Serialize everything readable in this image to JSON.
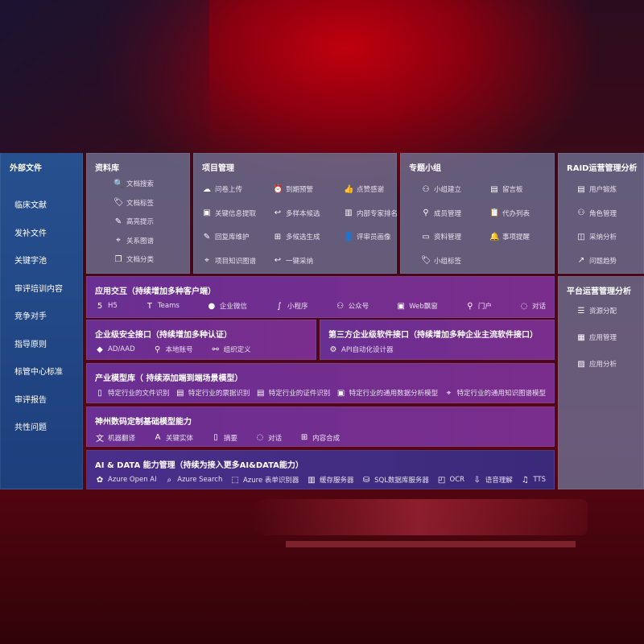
{
  "external": {
    "title": "外部文件",
    "items": [
      "临床文献",
      "发补文件",
      "关键字池",
      "审评培训内容",
      "竞争对手",
      "指导原则",
      "标管中心标准",
      "审评报告",
      "共性问题"
    ]
  },
  "library": {
    "title": "资料库",
    "items": [
      {
        "icon": "doc-search",
        "label": "文档搜索"
      },
      {
        "icon": "tag",
        "label": "文档标签"
      },
      {
        "icon": "pen",
        "label": "高亮提示"
      },
      {
        "icon": "graph",
        "label": "关系图谱"
      },
      {
        "icon": "doc-stack",
        "label": "文档分类"
      }
    ]
  },
  "project": {
    "title": "项目管理",
    "items": [
      {
        "icon": "cloud-upload",
        "label": "问卷上传"
      },
      {
        "icon": "alarm",
        "label": "到期预警"
      },
      {
        "icon": "thumbs-up",
        "label": "点赞感谢"
      },
      {
        "icon": "window",
        "label": "关键信息提取"
      },
      {
        "icon": "reply-all",
        "label": "多样本候选"
      },
      {
        "icon": "rank",
        "label": "内部专家排名"
      },
      {
        "icon": "edit",
        "label": "回复库维护"
      },
      {
        "icon": "puzzle",
        "label": "多候选生成"
      },
      {
        "icon": "user",
        "label": "评审员画像"
      },
      {
        "icon": "graph",
        "label": "项目知识图谱"
      },
      {
        "icon": "reply",
        "label": "一键采纳"
      }
    ]
  },
  "group": {
    "title": "专题小组",
    "items": [
      {
        "icon": "users",
        "label": "小组建立"
      },
      {
        "icon": "bbs",
        "label": "留言板"
      },
      {
        "icon": "user-add",
        "label": "成员管理"
      },
      {
        "icon": "clipboard",
        "label": "代办列表"
      },
      {
        "icon": "folder",
        "label": "资料管理"
      },
      {
        "icon": "bell",
        "label": "事项提醒"
      },
      {
        "icon": "tag",
        "label": "小组标签"
      }
    ]
  },
  "raid": {
    "title": "RAID运营管理分析",
    "items": [
      {
        "icon": "id-card",
        "label": "用户锻炼"
      },
      {
        "icon": "users",
        "label": "角色管理"
      },
      {
        "icon": "qa",
        "label": "采纳分析"
      },
      {
        "icon": "trend",
        "label": "问题趋势"
      }
    ]
  },
  "platform": {
    "title": "平台运营管理分析",
    "items": [
      {
        "icon": "list",
        "label": "资源分配"
      },
      {
        "icon": "apps",
        "label": "应用管理"
      },
      {
        "icon": "chart",
        "label": "应用分析"
      }
    ]
  },
  "app": {
    "title": "应用交互（持续增加多种客户端）",
    "items": [
      {
        "icon": "html5",
        "label": "H5"
      },
      {
        "icon": "teams",
        "label": "Teams"
      },
      {
        "icon": "wechat",
        "label": "企业微信"
      },
      {
        "icon": "mini-program",
        "label": "小程序"
      },
      {
        "icon": "users",
        "label": "公众号"
      },
      {
        "icon": "window",
        "label": "Web飘窗"
      },
      {
        "icon": "portal",
        "label": "门户"
      },
      {
        "icon": "chat",
        "label": "对话"
      }
    ]
  },
  "security": {
    "title": "企业级安全接口（持续增加多种认证）",
    "items": [
      {
        "icon": "azure-ad",
        "label": "AD/AAD"
      },
      {
        "icon": "user-lock",
        "label": "本地账号"
      },
      {
        "icon": "org",
        "label": "组织定义"
      }
    ]
  },
  "thirdparty": {
    "title": "第三方企业级软件接口（持续增加多种企业主流软件接口）",
    "items": [
      {
        "icon": "gear",
        "label": "API自动化设计器"
      }
    ]
  },
  "industry": {
    "title": "产业模型库（ 持续添加端到端场景模型）",
    "items": [
      {
        "icon": "doc",
        "label": "特定行业的文件识别"
      },
      {
        "icon": "receipt",
        "label": "特定行业的票据识别"
      },
      {
        "icon": "id-card",
        "label": "特定行业的证件识别"
      },
      {
        "icon": "analysis",
        "label": "特定行业的通用数据分析模型"
      },
      {
        "icon": "graph",
        "label": "特定行业的通用知识图谱模型"
      }
    ]
  },
  "base": {
    "title": "神州数码定制基础模型能力",
    "items": [
      {
        "icon": "translate",
        "label": "机器翻译"
      },
      {
        "icon": "entity",
        "label": "关键实体"
      },
      {
        "icon": "summary",
        "label": "摘要"
      },
      {
        "icon": "chat",
        "label": "对话"
      },
      {
        "icon": "puzzle",
        "label": "内容合成"
      }
    ]
  },
  "ai": {
    "title": "AI & DATA 能力管理（持续为接入更多AI&DATA能力）",
    "items": [
      {
        "icon": "openai",
        "label": "Azure Open AI"
      },
      {
        "icon": "search-doc",
        "label": "Azure Search"
      },
      {
        "icon": "form",
        "label": "Azure 表单识别器"
      },
      {
        "icon": "cache",
        "label": "缓存服务器"
      },
      {
        "icon": "sql",
        "label": "SQL数据库服务器"
      },
      {
        "icon": "ocr",
        "label": "OCR"
      },
      {
        "icon": "speech",
        "label": "语音理解"
      },
      {
        "icon": "tts",
        "label": "TTS"
      }
    ]
  }
}
